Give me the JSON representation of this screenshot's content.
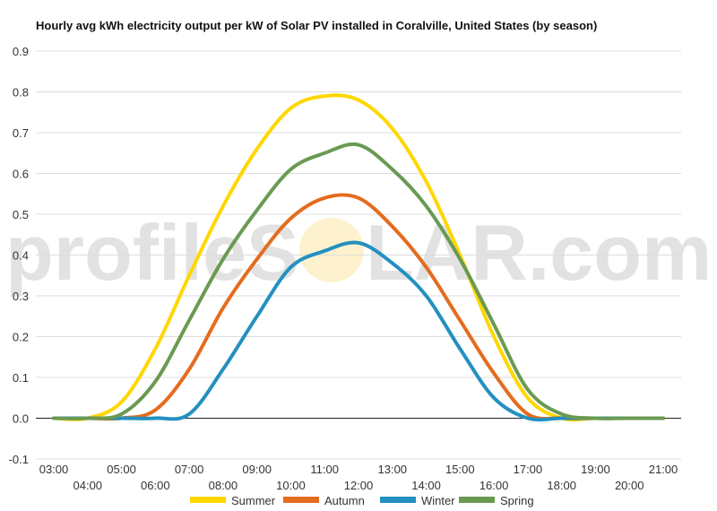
{
  "watermark": {
    "left": "profileS",
    "right": "LAR.com"
  },
  "chart_data": {
    "type": "line",
    "title": "Hourly avg kWh electricity output per kW of Solar PV installed in Coralville, United States (by season)",
    "xlabel": "",
    "ylabel": "",
    "categories": [
      "03:00",
      "04:00",
      "05:00",
      "06:00",
      "07:00",
      "08:00",
      "09:00",
      "10:00",
      "11:00",
      "12:00",
      "13:00",
      "14:00",
      "15:00",
      "16:00",
      "17:00",
      "18:00",
      "19:00",
      "20:00",
      "21:00"
    ],
    "ylim": [
      -0.1,
      0.9
    ],
    "yticks": [
      "-0.1",
      "0.0",
      "0.1",
      "0.2",
      "0.3",
      "0.4",
      "0.5",
      "0.6",
      "0.7",
      "0.8",
      "0.9"
    ],
    "grid": true,
    "legend_position": "bottom",
    "series": [
      {
        "name": "Summer",
        "color": "#ffd700",
        "values": [
          0.0,
          0.0,
          0.04,
          0.17,
          0.35,
          0.52,
          0.66,
          0.76,
          0.79,
          0.78,
          0.71,
          0.58,
          0.4,
          0.2,
          0.05,
          0.0,
          0.0,
          0.0,
          0.0
        ]
      },
      {
        "name": "Autumn",
        "color": "#e46c1e",
        "values": [
          0.0,
          0.0,
          0.0,
          0.02,
          0.12,
          0.27,
          0.39,
          0.49,
          0.54,
          0.54,
          0.47,
          0.37,
          0.24,
          0.11,
          0.01,
          0.0,
          0.0,
          0.0,
          0.0
        ]
      },
      {
        "name": "Winter",
        "color": "#2390c0",
        "values": [
          0.0,
          0.0,
          0.0,
          0.0,
          0.01,
          0.12,
          0.25,
          0.37,
          0.41,
          0.43,
          0.38,
          0.3,
          0.17,
          0.05,
          0.0,
          0.0,
          0.0,
          0.0,
          0.0
        ]
      },
      {
        "name": "Spring",
        "color": "#6a9a52",
        "values": [
          0.0,
          0.0,
          0.01,
          0.09,
          0.24,
          0.39,
          0.51,
          0.61,
          0.65,
          0.67,
          0.61,
          0.52,
          0.39,
          0.23,
          0.07,
          0.01,
          0.0,
          0.0,
          0.0
        ]
      }
    ]
  }
}
